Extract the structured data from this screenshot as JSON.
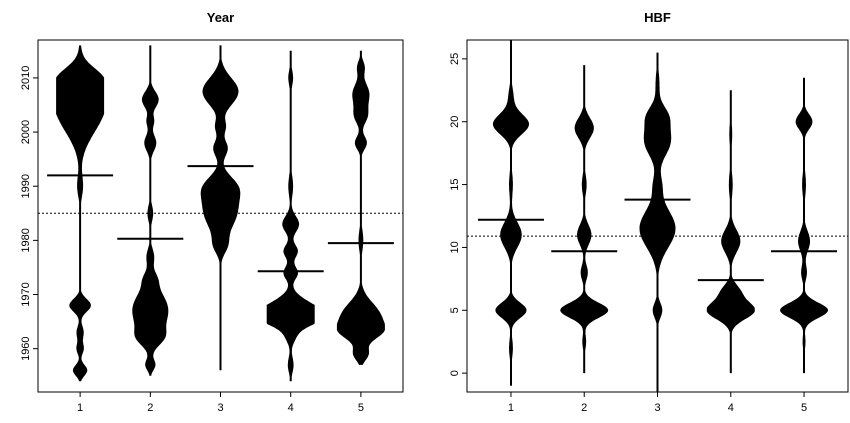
{
  "chart_data": [
    {
      "type": "beanplot",
      "title": "Year",
      "categories": [
        "1",
        "2",
        "3",
        "4",
        "5"
      ],
      "xlim": [
        0.4,
        5.6
      ],
      "ylim": [
        1952,
        2017
      ],
      "yticks": [
        1960,
        1970,
        1980,
        1990,
        2000,
        2010
      ],
      "ytick_labels": [
        "1960",
        "1970",
        "1980",
        "1990",
        "2000",
        "2010"
      ],
      "overall_mean": 1985,
      "group_means": [
        1992,
        1980.3,
        1993.7,
        1974.3,
        1979.5
      ],
      "ranges": [
        [
          1954,
          2016
        ],
        [
          1955,
          2016
        ],
        [
          1956,
          2016
        ],
        [
          1954,
          2015
        ],
        [
          1957,
          2015
        ]
      ],
      "density_peaks": [
        [
          [
            2004.5,
            1.0,
            4.5
          ],
          [
            2008,
            0.5,
            2
          ],
          [
            2011,
            0.3,
            1.5
          ],
          [
            1968,
            0.45,
            1.2
          ],
          [
            1963,
            0.15,
            1.2
          ],
          [
            1956,
            0.3,
            1.0
          ],
          [
            1960,
            0.15,
            1.0
          ],
          [
            1990,
            0.12,
            2
          ]
        ],
        [
          [
            1967,
            0.75,
            3.5
          ],
          [
            1962,
            0.35,
            1.5
          ],
          [
            1957,
            0.2,
            1.0
          ],
          [
            2006,
            0.35,
            1.5
          ],
          [
            1998,
            0.25,
            1.5
          ],
          [
            2002,
            0.15,
            1.0
          ],
          [
            1985,
            0.12,
            1.5
          ],
          [
            1977,
            0.15,
            1.5
          ],
          [
            1973,
            0.15,
            1.2
          ]
        ],
        [
          [
            2007.5,
            0.75,
            2.5
          ],
          [
            1985.5,
            0.7,
            3.5
          ],
          [
            1990,
            0.45,
            2
          ],
          [
            1997,
            0.3,
            1.5
          ],
          [
            2001,
            0.2,
            1.2
          ],
          [
            1979,
            0.2,
            1.5
          ]
        ],
        [
          [
            1967,
            1.0,
            2.0
          ],
          [
            1965.5,
            0.6,
            1.5
          ],
          [
            1983,
            0.35,
            1.5
          ],
          [
            1978,
            0.3,
            1.2
          ],
          [
            1974,
            0.3,
            1.2
          ],
          [
            1962,
            0.15,
            1.2
          ],
          [
            1957,
            0.12,
            1.5
          ],
          [
            2010,
            0.1,
            1.5
          ],
          [
            1990,
            0.1,
            2
          ]
        ],
        [
          [
            1966,
            0.8,
            2.5
          ],
          [
            1963,
            0.55,
            1.5
          ],
          [
            1959,
            0.3,
            1.2
          ],
          [
            2007,
            0.35,
            2
          ],
          [
            2003,
            0.25,
            1.5
          ],
          [
            1998,
            0.25,
            1.2
          ],
          [
            2012,
            0.15,
            1.2
          ],
          [
            1980,
            0.1,
            2
          ]
        ]
      ]
    },
    {
      "type": "beanplot",
      "title": "HBF",
      "categories": [
        "1",
        "2",
        "3",
        "4",
        "5"
      ],
      "xlim": [
        0.4,
        5.6
      ],
      "ylim": [
        -1.5,
        26.5
      ],
      "yticks": [
        0,
        5,
        10,
        15,
        20,
        25
      ],
      "ytick_labels": [
        "0",
        "5",
        "10",
        "15",
        "20",
        "25"
      ],
      "overall_mean": 10.9,
      "group_means": [
        12.2,
        9.7,
        13.8,
        7.4,
        9.7
      ],
      "ranges": [
        [
          -1,
          26.5
        ],
        [
          0,
          24.5
        ],
        [
          -1.5,
          25.5
        ],
        [
          0,
          22.5
        ],
        [
          0,
          23.5
        ]
      ],
      "density_peaks": [
        [
          [
            19.8,
            0.75,
            0.8
          ],
          [
            5,
            0.65,
            0.6
          ],
          [
            11,
            0.45,
            1.0
          ],
          [
            22,
            0.1,
            0.8
          ],
          [
            2,
            0.08,
            0.8
          ],
          [
            15,
            0.08,
            1.0
          ]
        ],
        [
          [
            5,
            1.0,
            0.6
          ],
          [
            19.5,
            0.4,
            0.8
          ],
          [
            11,
            0.3,
            0.8
          ],
          [
            8,
            0.15,
            0.6
          ],
          [
            15,
            0.1,
            0.8
          ],
          [
            2.5,
            0.08,
            0.6
          ]
        ],
        [
          [
            11.5,
            0.75,
            1.5
          ],
          [
            18.5,
            0.55,
            1.2
          ],
          [
            20.5,
            0.35,
            0.8
          ],
          [
            5,
            0.2,
            0.6
          ],
          [
            15,
            0.15,
            0.8
          ],
          [
            23,
            0.08,
            1.0
          ]
        ],
        [
          [
            5,
            1.0,
            0.7
          ],
          [
            10.5,
            0.4,
            0.9
          ],
          [
            6.5,
            0.35,
            0.6
          ],
          [
            15,
            0.08,
            1.0
          ],
          [
            19,
            0.06,
            1.0
          ]
        ],
        [
          [
            5,
            1.0,
            0.6
          ],
          [
            20,
            0.35,
            0.6
          ],
          [
            10.5,
            0.25,
            0.8
          ],
          [
            8,
            0.12,
            0.6
          ],
          [
            15,
            0.08,
            1.0
          ],
          [
            2.5,
            0.06,
            0.6
          ]
        ]
      ]
    }
  ]
}
